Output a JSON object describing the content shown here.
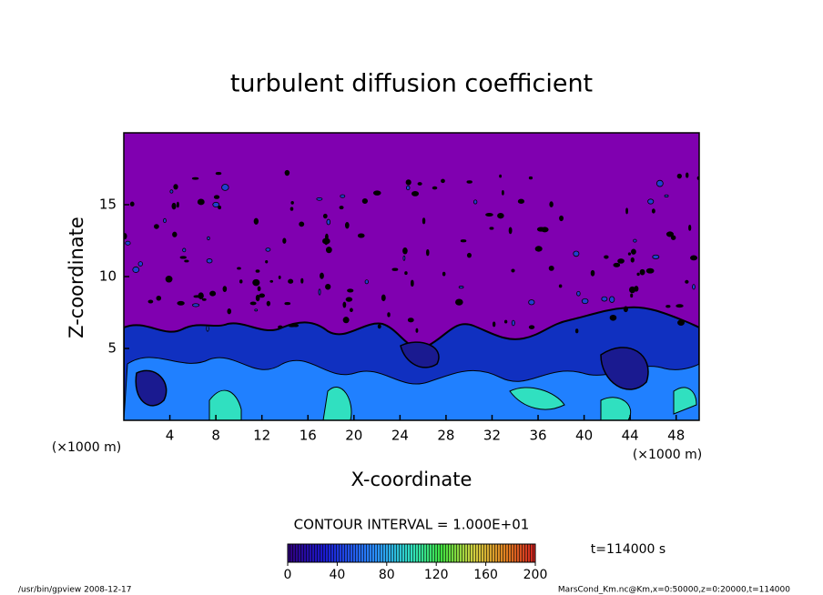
{
  "chart_data": {
    "type": "contour",
    "title": "turbulent diffusion coefficient",
    "x_label": "X-coordinate",
    "y_label": "Z-coordinate",
    "x_unit_left": "(×1000 m)",
    "x_unit_right": "(×1000 m)",
    "xlim": [
      0,
      50
    ],
    "xticks": [
      4,
      8,
      12,
      16,
      20,
      24,
      28,
      32,
      36,
      40,
      44,
      48
    ],
    "ylim": [
      0,
      20
    ],
    "yticks": [
      5,
      10,
      15
    ],
    "contour_interval": "CONTOUR INTERVAL = 1.000E+01",
    "colorbar": {
      "lim": [
        0,
        200
      ],
      "ticks": [
        0,
        40,
        80,
        120,
        160,
        200
      ]
    },
    "time_label": "t=114000 s",
    "footer_left": "/usr/bin/gpview  2008-12-17",
    "footer_right": "MarsCond_Km.nc@Km,x=0:50000,z=0:20000,t=114000"
  }
}
